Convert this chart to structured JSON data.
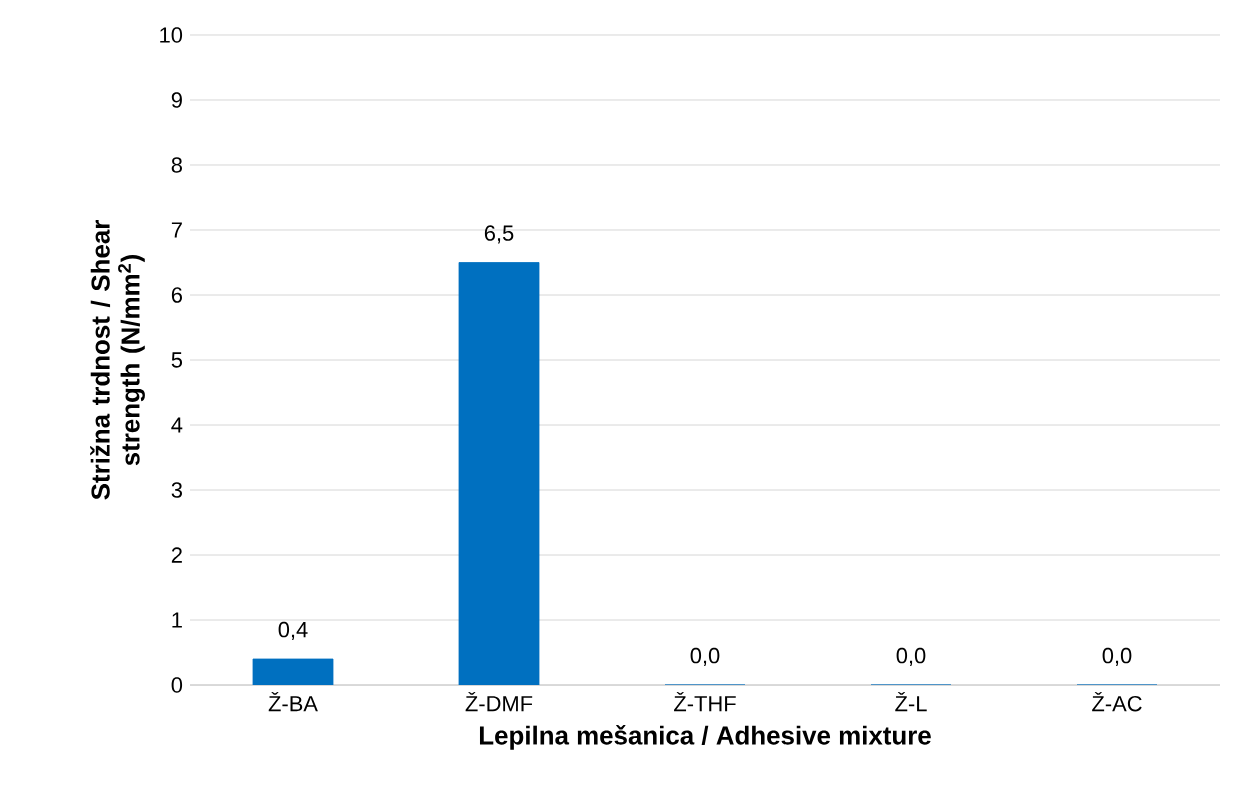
{
  "chart_data": {
    "type": "bar",
    "xlabel": "Lepilna mešanica / Adhesive mixture",
    "ylabel": "Strižna trdnost / Shear strength (N/mm$^{2}$)",
    "categories": [
      "Ž-BA",
      "Ž-DMF",
      "Ž-THF",
      "Ž-L",
      "Ž-AC"
    ],
    "values": [
      0.4,
      6.5,
      0.0,
      0.0,
      0.0
    ],
    "value_labels": [
      "0,4",
      "6,5",
      "0,0",
      "0,0",
      "0,0"
    ],
    "color": "#0070c0",
    "ylim": [
      0,
      10
    ],
    "yticks": [
      0,
      1,
      2,
      3,
      4,
      5,
      6,
      7,
      8,
      9,
      10
    ],
    "grid": "y"
  }
}
